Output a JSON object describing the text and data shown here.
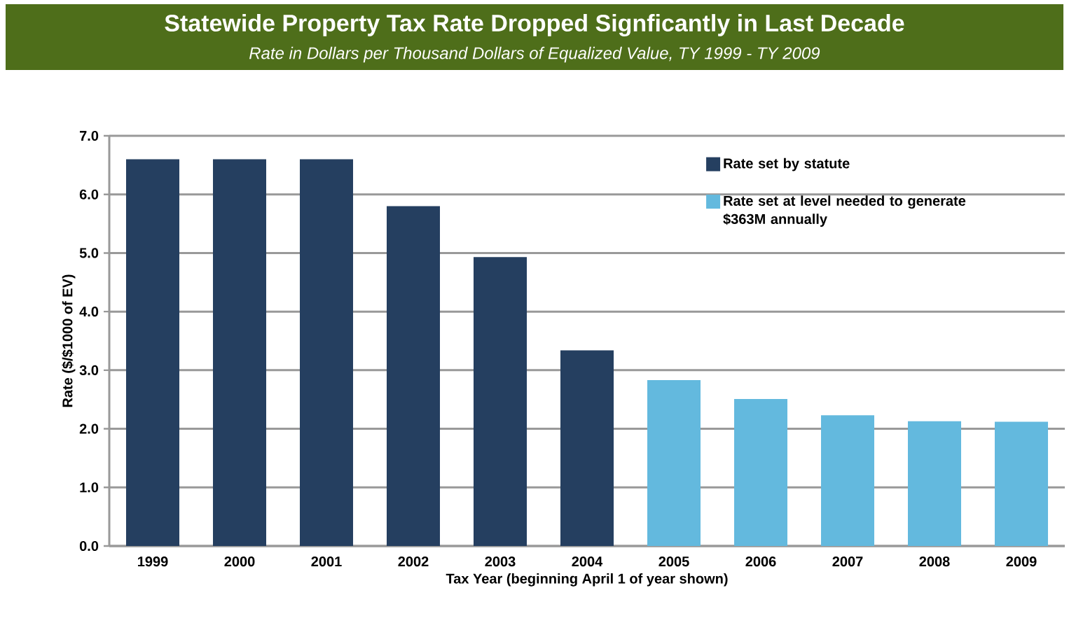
{
  "chart_data": {
    "type": "bar",
    "title": "Statewide Property Tax Rate Dropped Signficantly in Last Decade",
    "subtitle": "Rate in Dollars per Thousand Dollars of Equalized Value, TY 1999 - TY 2009",
    "xlabel": "Tax Year (beginning April 1 of year shown)",
    "ylabel": "Rate ($/$1000 of EV)",
    "categories": [
      "1999",
      "2000",
      "2001",
      "2002",
      "2003",
      "2004",
      "2005",
      "2006",
      "2007",
      "2008",
      "2009"
    ],
    "series": [
      {
        "name": "Rate set by statute",
        "color": "#253f60",
        "values": [
          6.6,
          6.6,
          6.6,
          5.8,
          4.93,
          3.34,
          null,
          null,
          null,
          null,
          null
        ]
      },
      {
        "name": "Rate set at level needed to generate $363M annually",
        "color": "#63b9de",
        "values": [
          null,
          null,
          null,
          null,
          null,
          null,
          2.83,
          2.51,
          2.23,
          2.13,
          2.12
        ]
      }
    ],
    "ylim": [
      0,
      7
    ],
    "yticks": [
      {
        "value": 0,
        "label": "0.0"
      },
      {
        "value": 1,
        "label": "1.0"
      },
      {
        "value": 2,
        "label": "2.0"
      },
      {
        "value": 3,
        "label": "3.0"
      },
      {
        "value": 4,
        "label": "4.0"
      },
      {
        "value": 5,
        "label": "5.0"
      },
      {
        "value": 6,
        "label": "6.0"
      },
      {
        "value": 7,
        "label": "7.0"
      }
    ],
    "grid": "y",
    "legend": "top right"
  }
}
